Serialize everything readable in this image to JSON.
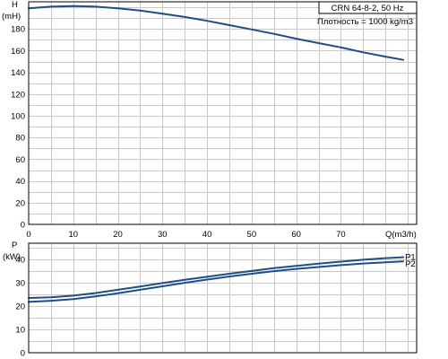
{
  "colors": {
    "curve": "#1f4e87",
    "grid": "#c8c8c8",
    "frame": "#000000"
  },
  "chart_data": [
    {
      "id": "head",
      "type": "line",
      "ylabel": [
        "H",
        "(mH)"
      ],
      "xlabel": "Q(m3/h)",
      "grid": true,
      "xlim": [
        0,
        87
      ],
      "ylim": [
        0,
        205
      ],
      "xticks": [
        0,
        10,
        20,
        30,
        40,
        50,
        60,
        70
      ],
      "yticks": [
        0,
        20,
        40,
        60,
        80,
        100,
        120,
        140,
        160,
        180
      ],
      "annotations": [
        "CRN 64-8-2, 50 Hz",
        "Плотность = 1000 kg/m3"
      ],
      "series": [
        {
          "x": [
            0,
            5,
            10,
            15,
            20,
            25,
            30,
            35,
            40,
            45,
            50,
            55,
            60,
            65,
            70,
            75,
            80,
            84
          ],
          "y": [
            199,
            200.5,
            201,
            200.5,
            199,
            197,
            194,
            191,
            187.5,
            183.5,
            179.5,
            175.5,
            171,
            167,
            163,
            158.5,
            154.5,
            151.5
          ]
        }
      ]
    },
    {
      "id": "power",
      "type": "line",
      "ylabel": [
        "P",
        "(kW)"
      ],
      "grid": true,
      "xlim": [
        0,
        87
      ],
      "ylim": [
        0,
        47
      ],
      "yticks": [
        0,
        10,
        20,
        30,
        40
      ],
      "series": [
        {
          "name": "P1",
          "x": [
            0,
            5,
            10,
            15,
            20,
            25,
            30,
            35,
            40,
            45,
            50,
            55,
            60,
            65,
            70,
            75,
            80,
            84
          ],
          "y": [
            23.5,
            23.8,
            24.5,
            25.6,
            27,
            28.4,
            29.9,
            31.3,
            32.6,
            33.9,
            35.1,
            36.3,
            37.3,
            38.2,
            39.1,
            39.9,
            40.6,
            41
          ]
        },
        {
          "name": "P2",
          "x": [
            0,
            5,
            10,
            15,
            20,
            25,
            30,
            35,
            40,
            45,
            50,
            55,
            60,
            65,
            70,
            75,
            80,
            84
          ],
          "y": [
            21.8,
            22.3,
            23,
            24.2,
            25.5,
            27,
            28.5,
            30,
            31.4,
            32.7,
            33.9,
            35,
            36,
            36.8,
            37.6,
            38.3,
            38.8,
            39.2
          ]
        }
      ]
    }
  ]
}
